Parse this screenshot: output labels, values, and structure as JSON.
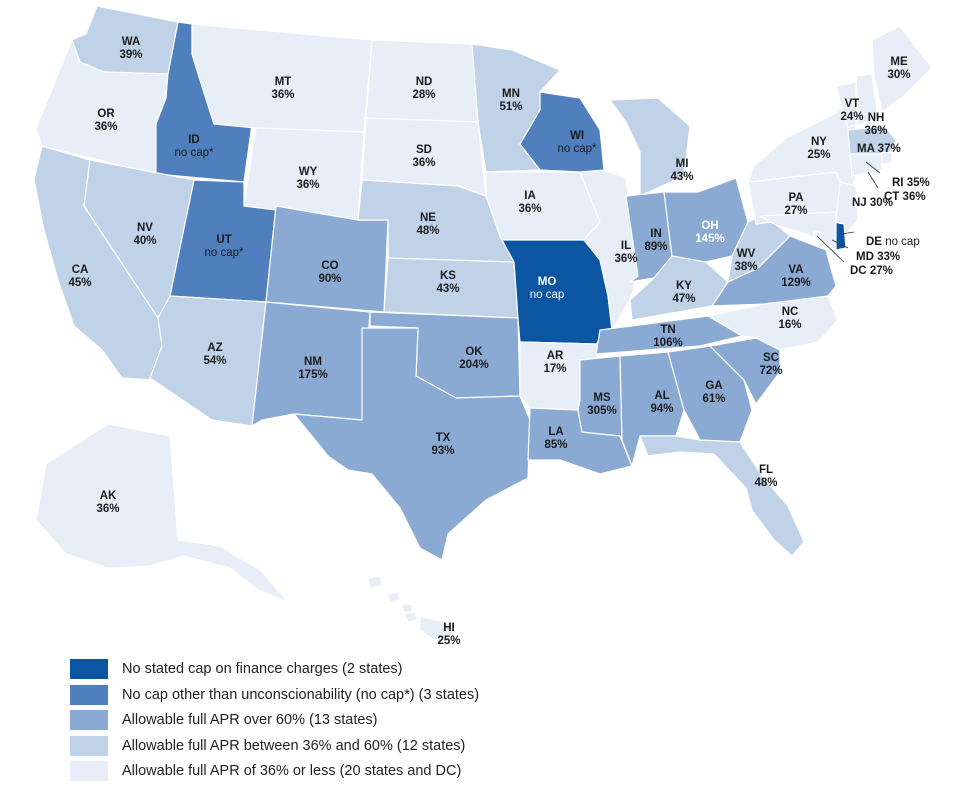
{
  "colors": {
    "no_stated_cap": "#0b55a3",
    "no_cap_unconscionability": "#4f7fbd",
    "over_60": "#8aaad4",
    "between_36_60": "#c0d2e8",
    "under_36": "#e7eef7",
    "border": "#ffffff"
  },
  "map": {
    "states": [
      {
        "id": "WA",
        "abbr": "WA",
        "value": "39%",
        "category": "between_36_60"
      },
      {
        "id": "OR",
        "abbr": "OR",
        "value": "36%",
        "category": "under_36"
      },
      {
        "id": "CA",
        "abbr": "CA",
        "value": "45%",
        "category": "between_36_60"
      },
      {
        "id": "ID",
        "abbr": "ID",
        "value": "no cap*",
        "category": "no_cap_unconscionability"
      },
      {
        "id": "NV",
        "abbr": "NV",
        "value": "40%",
        "category": "between_36_60"
      },
      {
        "id": "UT",
        "abbr": "UT",
        "value": "no cap*",
        "category": "no_cap_unconscionability"
      },
      {
        "id": "AZ",
        "abbr": "AZ",
        "value": "54%",
        "category": "between_36_60"
      },
      {
        "id": "MT",
        "abbr": "MT",
        "value": "36%",
        "category": "under_36"
      },
      {
        "id": "WY",
        "abbr": "WY",
        "value": "36%",
        "category": "under_36"
      },
      {
        "id": "CO",
        "abbr": "CO",
        "value": "90%",
        "category": "over_60"
      },
      {
        "id": "NM",
        "abbr": "NM",
        "value": "175%",
        "category": "over_60"
      },
      {
        "id": "ND",
        "abbr": "ND",
        "value": "28%",
        "category": "under_36"
      },
      {
        "id": "SD",
        "abbr": "SD",
        "value": "36%",
        "category": "under_36"
      },
      {
        "id": "NE",
        "abbr": "NE",
        "value": "48%",
        "category": "between_36_60"
      },
      {
        "id": "KS",
        "abbr": "KS",
        "value": "43%",
        "category": "between_36_60"
      },
      {
        "id": "OK",
        "abbr": "OK",
        "value": "204%",
        "category": "over_60"
      },
      {
        "id": "TX",
        "abbr": "TX",
        "value": "93%",
        "category": "over_60"
      },
      {
        "id": "MN",
        "abbr": "MN",
        "value": "51%",
        "category": "between_36_60"
      },
      {
        "id": "IA",
        "abbr": "IA",
        "value": "36%",
        "category": "under_36"
      },
      {
        "id": "MO",
        "abbr": "MO",
        "value": "no cap",
        "category": "no_stated_cap"
      },
      {
        "id": "AR",
        "abbr": "AR",
        "value": "17%",
        "category": "under_36"
      },
      {
        "id": "LA",
        "abbr": "LA",
        "value": "85%",
        "category": "over_60"
      },
      {
        "id": "WI",
        "abbr": "WI",
        "value": "no cap*",
        "category": "no_cap_unconscionability"
      },
      {
        "id": "IL",
        "abbr": "IL",
        "value": "36%",
        "category": "under_36"
      },
      {
        "id": "MI",
        "abbr": "MI",
        "value": "43%",
        "category": "between_36_60"
      },
      {
        "id": "IN",
        "abbr": "IN",
        "value": "89%",
        "category": "over_60"
      },
      {
        "id": "OH",
        "abbr": "OH",
        "value": "145%",
        "category": "over_60"
      },
      {
        "id": "KY",
        "abbr": "KY",
        "value": "47%",
        "category": "between_36_60"
      },
      {
        "id": "TN",
        "abbr": "TN",
        "value": "106%",
        "category": "over_60"
      },
      {
        "id": "MS",
        "abbr": "MS",
        "value": "305%",
        "category": "over_60"
      },
      {
        "id": "AL",
        "abbr": "AL",
        "value": "94%",
        "category": "over_60"
      },
      {
        "id": "GA",
        "abbr": "GA",
        "value": "61%",
        "category": "over_60"
      },
      {
        "id": "FL",
        "abbr": "FL",
        "value": "48%",
        "category": "between_36_60"
      },
      {
        "id": "SC",
        "abbr": "SC",
        "value": "72%",
        "category": "over_60"
      },
      {
        "id": "NC",
        "abbr": "NC",
        "value": "16%",
        "category": "under_36"
      },
      {
        "id": "VA",
        "abbr": "VA",
        "value": "129%",
        "category": "over_60"
      },
      {
        "id": "WV",
        "abbr": "WV",
        "value": "38%",
        "category": "between_36_60"
      },
      {
        "id": "PA",
        "abbr": "PA",
        "value": "27%",
        "category": "under_36"
      },
      {
        "id": "NY",
        "abbr": "NY",
        "value": "25%",
        "category": "under_36"
      },
      {
        "id": "VT",
        "abbr": "VT",
        "value": "24%",
        "category": "under_36"
      },
      {
        "id": "NH",
        "abbr": "NH",
        "value": "36%",
        "category": "under_36"
      },
      {
        "id": "ME",
        "abbr": "ME",
        "value": "30%",
        "category": "under_36"
      },
      {
        "id": "MA",
        "abbr": "MA",
        "value": "37%",
        "category": "between_36_60"
      },
      {
        "id": "RI",
        "abbr": "RI",
        "value": "35%",
        "category": "under_36"
      },
      {
        "id": "CT",
        "abbr": "CT",
        "value": "36%",
        "category": "under_36"
      },
      {
        "id": "NJ",
        "abbr": "NJ",
        "value": "30%",
        "category": "under_36"
      },
      {
        "id": "DE",
        "abbr": "DE",
        "value": "no cap",
        "category": "no_stated_cap"
      },
      {
        "id": "MD",
        "abbr": "MD",
        "value": "33%",
        "category": "under_36"
      },
      {
        "id": "DC",
        "abbr": "DC",
        "value": "27%",
        "category": "under_36"
      },
      {
        "id": "AK",
        "abbr": "AK",
        "value": "36%",
        "category": "under_36"
      },
      {
        "id": "HI",
        "abbr": "HI",
        "value": "25%",
        "category": "under_36"
      }
    ]
  },
  "legend": [
    {
      "category": "no_stated_cap",
      "label": "No stated cap on finance charges (2 states)"
    },
    {
      "category": "no_cap_unconscionability",
      "label": "No cap other than unconscionability (no cap*) (3 states)"
    },
    {
      "category": "over_60",
      "label": "Allowable full APR over 60% (13 states)"
    },
    {
      "category": "between_36_60",
      "label": "Allowable full APR between 36% and 60% (12 states)"
    },
    {
      "category": "under_36",
      "label": "Allowable full APR of 36% or less (20 states and DC)"
    }
  ]
}
